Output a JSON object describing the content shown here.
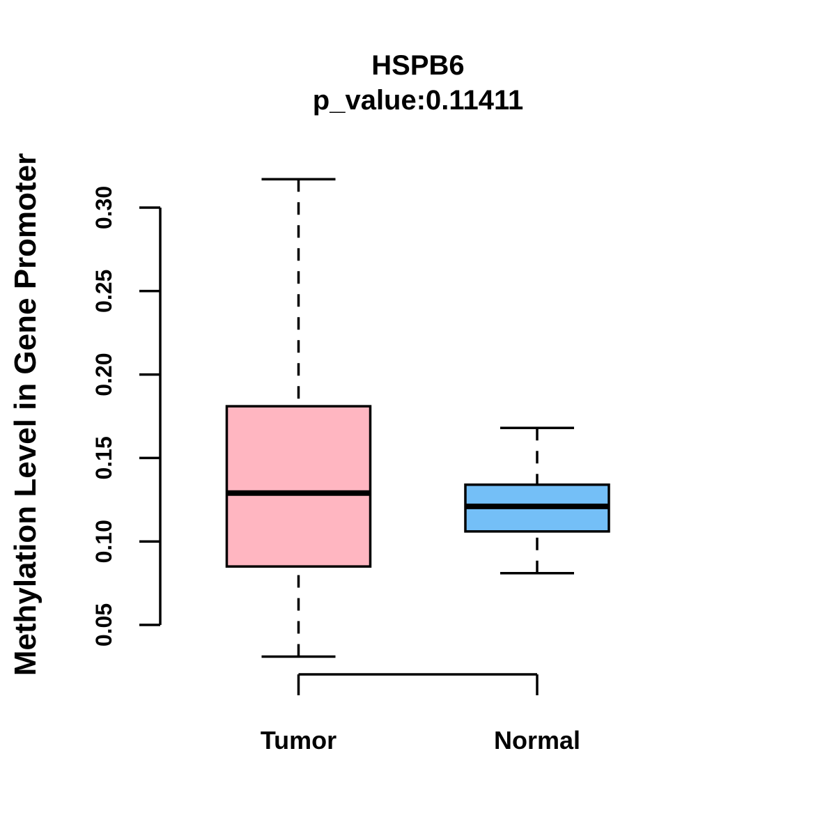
{
  "chart_data": {
    "type": "boxplot",
    "title": "HSPB6",
    "subtitle": "p_value:0.11411",
    "ylabel": "Methylation Level in Gene Promoter",
    "xlabel": "",
    "categories": [
      "Tumor",
      "Normal"
    ],
    "yticks": [
      0.05,
      0.1,
      0.15,
      0.2,
      0.25,
      0.3
    ],
    "ytick_labels": [
      "0.05",
      "0.10",
      "0.15",
      "0.20",
      "0.25",
      "0.30"
    ],
    "ylim": [
      0.031,
      0.318
    ],
    "grid": false,
    "legend": "none",
    "line_color": "#000000",
    "background_color": "#ffffff",
    "boxes": [
      {
        "category": "Tumor",
        "fill_color": "#FFB6C1",
        "whisker_low": 0.031,
        "q1": 0.085,
        "median": 0.129,
        "q3": 0.181,
        "whisker_high": 0.317
      },
      {
        "category": "Normal",
        "fill_color": "#74BFF7",
        "whisker_low": 0.081,
        "q1": 0.106,
        "median": 0.121,
        "q3": 0.134,
        "whisker_high": 0.168
      }
    ]
  }
}
